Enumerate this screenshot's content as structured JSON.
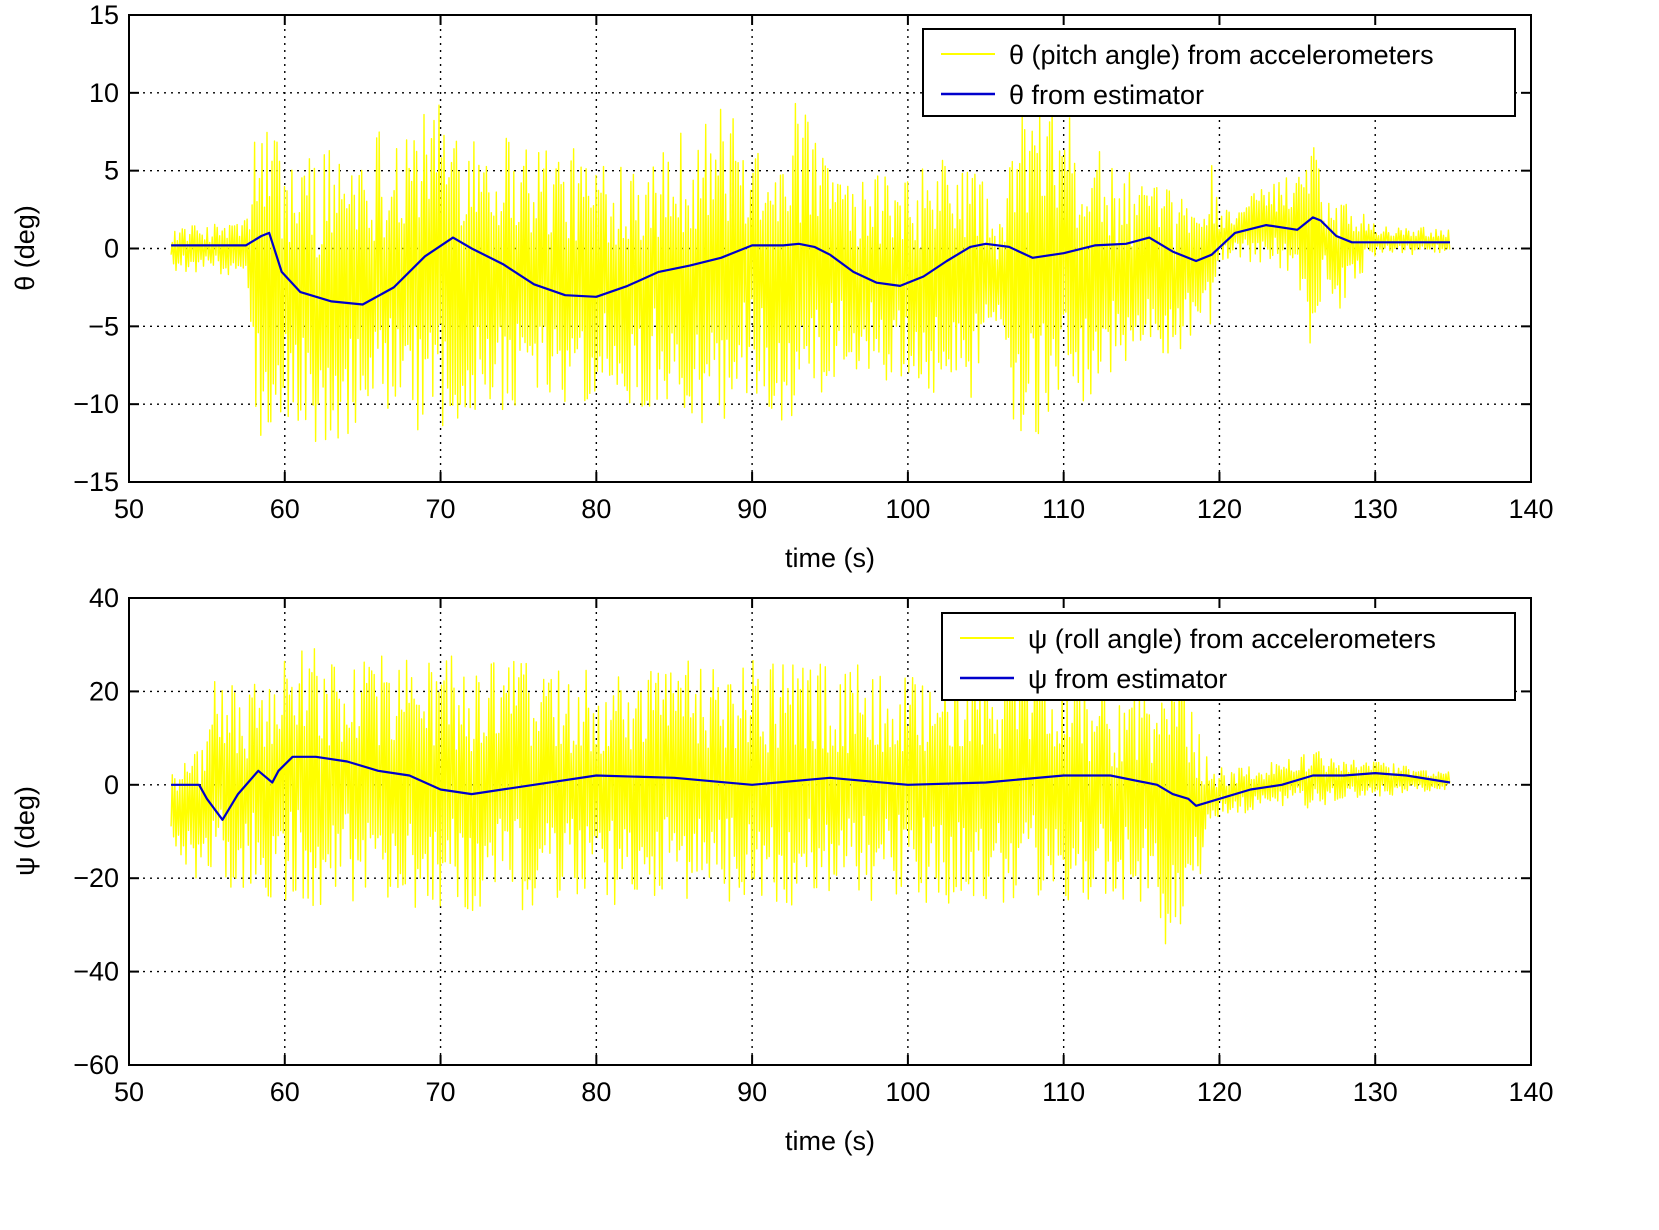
{
  "chart_data": [
    {
      "type": "line",
      "title": "",
      "xlabel": "time (s)",
      "ylabel": "θ (deg)",
      "xlim": [
        50,
        140
      ],
      "ylim": [
        -15,
        15
      ],
      "xticks": [
        50,
        60,
        70,
        80,
        90,
        100,
        110,
        120,
        130,
        140
      ],
      "yticks": [
        -15,
        -10,
        -5,
        0,
        5,
        10,
        15
      ],
      "xtick_labels": [
        "50",
        "60",
        "70",
        "80",
        "90",
        "100",
        "110",
        "120",
        "130",
        "140"
      ],
      "ytick_labels": [
        "−15",
        "−10",
        "−5",
        "0",
        "5",
        "10",
        "15"
      ],
      "grid": true,
      "legend_position": "top-right",
      "series": [
        {
          "name": "θ (pitch angle) from accelerometers",
          "color": "#ffff00",
          "x_range": [
            52.7,
            134.8
          ],
          "sample_step": 0.08,
          "envelope": [
            [
              52.7,
              1.5
            ],
            [
              55,
              1.5
            ],
            [
              57.6,
              2
            ],
            [
              58.2,
              11.5
            ],
            [
              60,
              9
            ],
            [
              65,
              10
            ],
            [
              70,
              10.5
            ],
            [
              75,
              9
            ],
            [
              80,
              8
            ],
            [
              85,
              9
            ],
            [
              88,
              10.5
            ],
            [
              90,
              8
            ],
            [
              93,
              11
            ],
            [
              96,
              6
            ],
            [
              100,
              7
            ],
            [
              104,
              8.5
            ],
            [
              106,
              3
            ],
            [
              107,
              11.5
            ],
            [
              110,
              10.5
            ],
            [
              113,
              7
            ],
            [
              116,
              5.5
            ],
            [
              117.5,
              5
            ],
            [
              119.5,
              5.5
            ],
            [
              120,
              1.5
            ],
            [
              123,
              2.5
            ],
            [
              125,
              3.5
            ],
            [
              125.8,
              8
            ],
            [
              126.7,
              3
            ],
            [
              127.5,
              4
            ],
            [
              128.5,
              3
            ],
            [
              130,
              1
            ],
            [
              134.8,
              0.8
            ]
          ],
          "offset": [
            [
              52.7,
              0
            ],
            [
              57.6,
              0
            ],
            [
              58.5,
              -2
            ],
            [
              62,
              -3
            ],
            [
              70,
              -1
            ],
            [
              80,
              -2
            ],
            [
              90,
              -1
            ],
            [
              100,
              -2
            ],
            [
              110,
              -1.5
            ],
            [
              118,
              -1.5
            ],
            [
              120,
              0.8
            ],
            [
              123,
              1.5
            ],
            [
              126,
              1.5
            ],
            [
              127.5,
              -0.5
            ],
            [
              129,
              0.5
            ],
            [
              134.8,
              0.5
            ]
          ]
        },
        {
          "name": "θ from estimator",
          "color": "#0000cc",
          "x": [
            52.7,
            55,
            57.5,
            58.5,
            59,
            59.8,
            61,
            63,
            65,
            67,
            69,
            70.8,
            72,
            74,
            76,
            78,
            80,
            82,
            84,
            86,
            88,
            90,
            92,
            93,
            94,
            95,
            96.5,
            98,
            99.5,
            101,
            102.5,
            104,
            105,
            106.5,
            108,
            110,
            112,
            114,
            115.5,
            117,
            118.5,
            119.5,
            121,
            123,
            125,
            126,
            126.5,
            127.5,
            128.5,
            130,
            134.8
          ],
          "y": [
            0.2,
            0.2,
            0.2,
            0.8,
            1.0,
            -1.5,
            -2.8,
            -3.4,
            -3.6,
            -2.5,
            -0.5,
            0.7,
            0,
            -1,
            -2.3,
            -3.0,
            -3.1,
            -2.4,
            -1.5,
            -1.1,
            -0.6,
            0.2,
            0.2,
            0.3,
            0.1,
            -0.4,
            -1.5,
            -2.2,
            -2.4,
            -1.8,
            -0.8,
            0.1,
            0.3,
            0.1,
            -0.6,
            -0.3,
            0.2,
            0.3,
            0.7,
            -0.2,
            -0.8,
            -0.4,
            1.0,
            1.5,
            1.2,
            2.0,
            1.8,
            0.8,
            0.4,
            0.4,
            0.4
          ]
        }
      ]
    },
    {
      "type": "line",
      "title": "",
      "xlabel": "time (s)",
      "ylabel": "ψ (deg)",
      "xlim": [
        50,
        140
      ],
      "ylim": [
        -60,
        40
      ],
      "xticks": [
        50,
        60,
        70,
        80,
        90,
        100,
        110,
        120,
        130,
        140
      ],
      "yticks": [
        -60,
        -40,
        -20,
        0,
        20,
        40
      ],
      "xtick_labels": [
        "50",
        "60",
        "70",
        "80",
        "90",
        "100",
        "110",
        "120",
        "130",
        "140"
      ],
      "ytick_labels": [
        "−60",
        "−40",
        "−20",
        "0",
        "20",
        "40"
      ],
      "grid": true,
      "legend_position": "top-right",
      "series": [
        {
          "name": "ψ (roll angle) from accelerometers",
          "color": "#ffff00",
          "x_range": [
            52.7,
            134.8
          ],
          "sample_step": 0.08,
          "envelope": [
            [
              52.7,
              10
            ],
            [
              54,
              12
            ],
            [
              55.5,
              20
            ],
            [
              56.5,
              24
            ],
            [
              58,
              22
            ],
            [
              60,
              28
            ],
            [
              65,
              27
            ],
            [
              70,
              28
            ],
            [
              80,
              26
            ],
            [
              90,
              27
            ],
            [
              100,
              25
            ],
            [
              107,
              26
            ],
            [
              112,
              24
            ],
            [
              116,
              22
            ],
            [
              117.2,
              40
            ],
            [
              118,
              24
            ],
            [
              119.5,
              6
            ],
            [
              121,
              5
            ],
            [
              125,
              5
            ],
            [
              126,
              7
            ],
            [
              127,
              5
            ],
            [
              130,
              4
            ],
            [
              134.8,
              2
            ]
          ],
          "offset": [
            [
              52.7,
              -4
            ],
            [
              54.5,
              -7
            ],
            [
              55.5,
              3
            ],
            [
              57,
              -1
            ],
            [
              58.5,
              0
            ],
            [
              60,
              2
            ],
            [
              70,
              0
            ],
            [
              80,
              0
            ],
            [
              90,
              0
            ],
            [
              100,
              0
            ],
            [
              110,
              0
            ],
            [
              116,
              -4
            ],
            [
              118,
              -6
            ],
            [
              120,
              -2
            ],
            [
              125,
              1
            ],
            [
              130,
              1
            ],
            [
              134.8,
              1
            ]
          ]
        },
        {
          "name": "ψ from estimator",
          "color": "#0000cc",
          "x": [
            52.7,
            54.5,
            55,
            56,
            57,
            58.3,
            59.2,
            59.6,
            60.5,
            62,
            64,
            66,
            68,
            70,
            72,
            76,
            80,
            85,
            90,
            95,
            100,
            105,
            110,
            113,
            116,
            117,
            118,
            118.5,
            120,
            122,
            124,
            126,
            128,
            130,
            132,
            134.8
          ],
          "y": [
            0,
            0,
            -3,
            -7.5,
            -2,
            3,
            0.5,
            3,
            6,
            6,
            5,
            3,
            2,
            -1,
            -2,
            0,
            2,
            1.5,
            0,
            1.5,
            0,
            0.5,
            2,
            2,
            0,
            -2,
            -3,
            -4.5,
            -3,
            -1,
            0,
            2,
            2,
            2.5,
            2,
            0.5
          ]
        }
      ]
    }
  ]
}
